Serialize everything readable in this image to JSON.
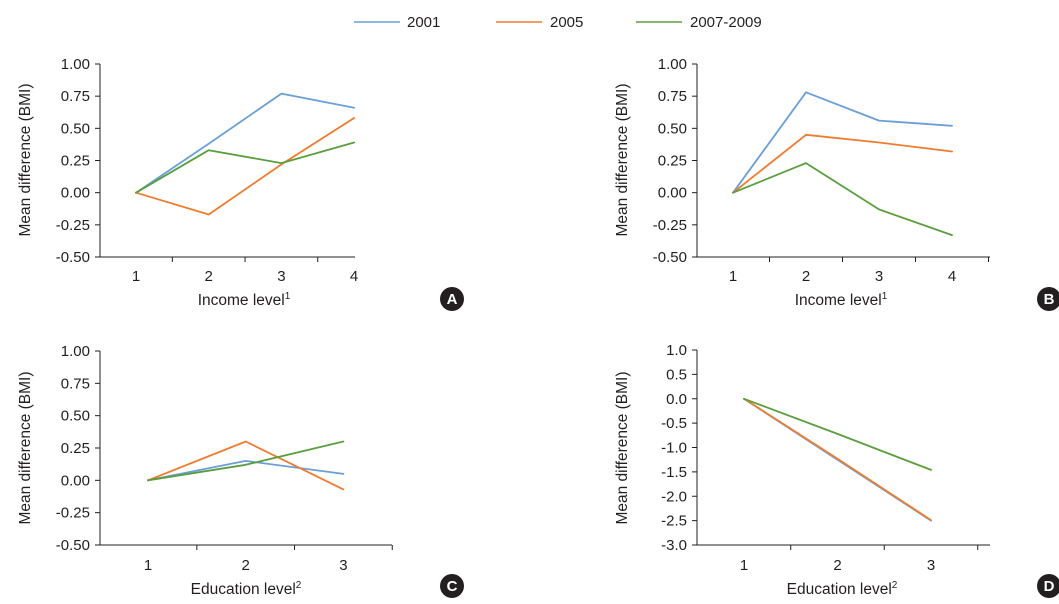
{
  "colors": {
    "2001": "#6a9fd8",
    "2005": "#f07b2f",
    "2007-2009": "#5a9e3e",
    "axis": "#231f20",
    "badge": "#231f20"
  },
  "legend": [
    {
      "label": "2001",
      "color": "#6a9fd8"
    },
    {
      "label": "2005",
      "color": "#f07b2f"
    },
    {
      "label": "2007-2009",
      "color": "#5a9e3e"
    }
  ],
  "chart_data": [
    {
      "panel": "A",
      "type": "line",
      "xlabel": "Income level",
      "xlabel_sup": "1",
      "ylabel": "Mean difference (BMI)",
      "x": [
        1,
        2,
        3,
        4
      ],
      "x_ticks": [
        "1",
        "2",
        "3",
        "4"
      ],
      "ylim": [
        -0.5,
        1.0
      ],
      "y_ticks": [
        "1.00",
        "0.75",
        "0.50",
        "0.25",
        "0.00",
        "-0.25",
        "-0.50"
      ],
      "series": [
        {
          "name": "2001",
          "values": [
            0.0,
            0.38,
            0.77,
            0.66
          ]
        },
        {
          "name": "2005",
          "values": [
            0.0,
            -0.17,
            0.22,
            0.58
          ]
        },
        {
          "name": "2007-2009",
          "values": [
            0.0,
            0.33,
            0.23,
            0.39
          ]
        }
      ]
    },
    {
      "panel": "B",
      "type": "line",
      "xlabel": "Income level",
      "xlabel_sup": "1",
      "ylabel": "Mean difference (BMI)",
      "x": [
        1,
        2,
        3,
        4
      ],
      "x_ticks": [
        "1",
        "2",
        "3",
        "4"
      ],
      "ylim": [
        -0.5,
        1.0
      ],
      "y_ticks": [
        "1.00",
        "0.75",
        "0.50",
        "0.25",
        "0.00",
        "-0.25",
        "-0.50"
      ],
      "series": [
        {
          "name": "2001",
          "values": [
            0.0,
            0.78,
            0.56,
            0.52
          ]
        },
        {
          "name": "2005",
          "values": [
            0.0,
            0.45,
            0.39,
            0.32
          ]
        },
        {
          "name": "2007-2009",
          "values": [
            0.0,
            0.23,
            -0.13,
            -0.33
          ]
        }
      ]
    },
    {
      "panel": "C",
      "type": "line",
      "xlabel": "Education level",
      "xlabel_sup": "2",
      "ylabel": "Mean difference (BMI)",
      "x": [
        1,
        2,
        3
      ],
      "x_ticks": [
        "1",
        "2",
        "3"
      ],
      "ylim": [
        -0.5,
        1.0
      ],
      "y_ticks": [
        "1.00",
        "0.75",
        "0.50",
        "0.25",
        "0.00",
        "-0.25",
        "-0.50"
      ],
      "series": [
        {
          "name": "2001",
          "values": [
            0.0,
            0.15,
            0.05
          ]
        },
        {
          "name": "2005",
          "values": [
            0.0,
            0.3,
            -0.07
          ]
        },
        {
          "name": "2007-2009",
          "values": [
            0.0,
            0.12,
            0.3
          ]
        }
      ]
    },
    {
      "panel": "D",
      "type": "line",
      "xlabel": "Education level",
      "xlabel_sup": "2",
      "ylabel": "Mean difference (BMI)",
      "x": [
        1,
        2,
        3
      ],
      "x_ticks": [
        "1",
        "2",
        "3"
      ],
      "ylim": [
        -3.0,
        1.0
      ],
      "y_ticks": [
        "1.0",
        "0.5",
        "0.0",
        "-0.5",
        "-1.0",
        "-1.5",
        "-2.0",
        "-2.5",
        "-3.0"
      ],
      "series": [
        {
          "name": "2001",
          "values": [
            0.0,
            -1.25,
            -2.5
          ]
        },
        {
          "name": "2005",
          "values": [
            0.0,
            -1.23,
            -2.49
          ]
        },
        {
          "name": "2007-2009",
          "values": [
            0.0,
            -0.72,
            -1.46
          ]
        }
      ]
    }
  ]
}
